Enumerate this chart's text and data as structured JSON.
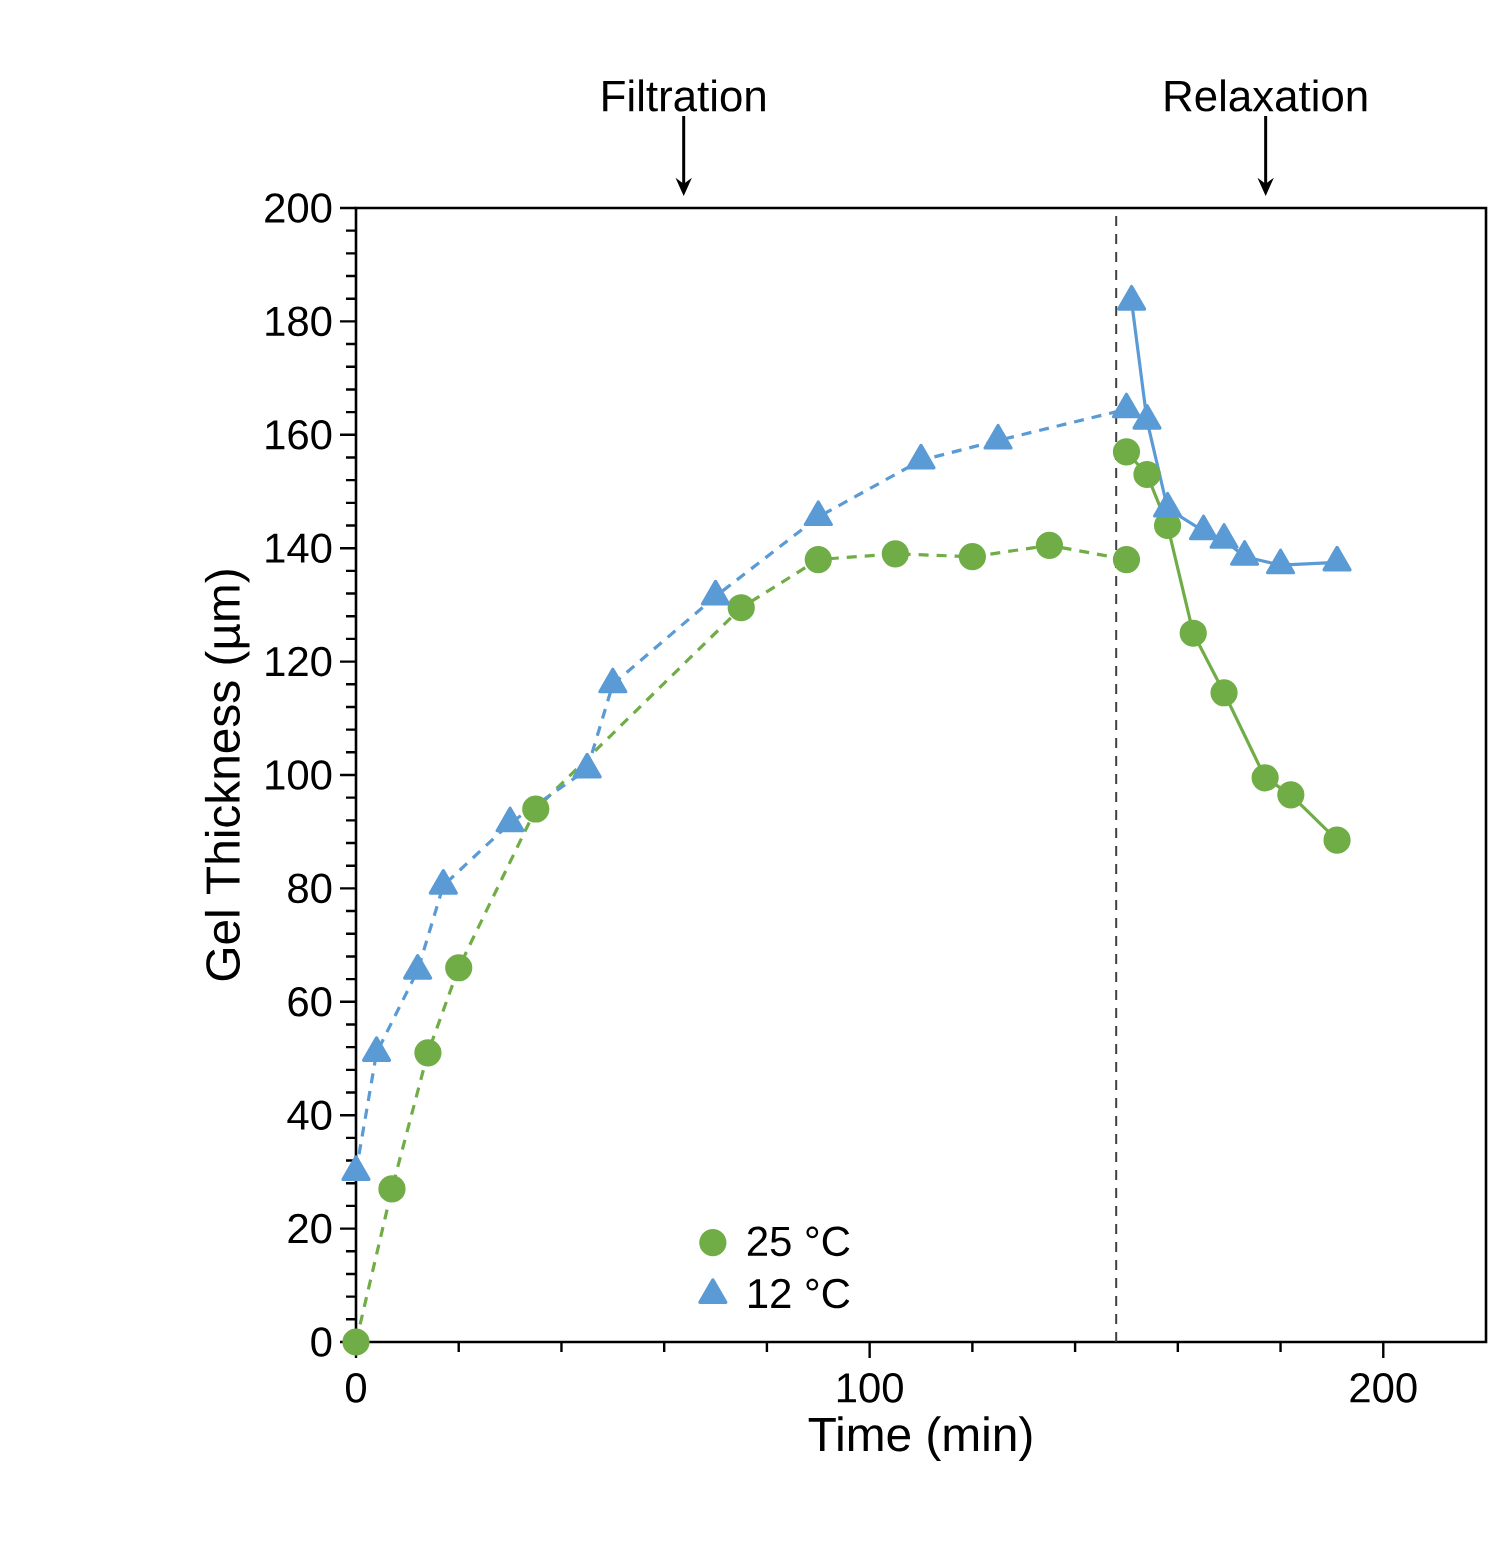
{
  "chart_data": {
    "type": "line",
    "xlabel": "Time (min)",
    "ylabel": "Gel Thickness (µm)",
    "xlim": [
      0,
      220
    ],
    "ylim": [
      0,
      200
    ],
    "xticks": [
      0,
      100,
      200
    ],
    "yticks": [
      0,
      20,
      40,
      60,
      80,
      100,
      120,
      140,
      160,
      180,
      200
    ],
    "legend": "bottom",
    "series": [
      {
        "name": "25 °C",
        "color": "#70ad47",
        "marker": "circle",
        "line_style": "dashed",
        "x": [
          0,
          7,
          14,
          20,
          35,
          75,
          90,
          105,
          120,
          135,
          150
        ],
        "values": [
          0,
          27,
          51,
          66,
          94,
          129.5,
          138,
          139,
          138.5,
          140.5,
          138
        ]
      },
      {
        "color": "#70ad47",
        "marker": "circle",
        "line_style": "solid",
        "x": [
          150,
          154,
          158,
          163,
          169,
          177,
          182,
          191
        ],
        "values": [
          157,
          153,
          144,
          125,
          114.5,
          99.5,
          96.5,
          88.5
        ]
      },
      {
        "name": "12 °C",
        "color": "#5b9bd5",
        "marker": "triangle",
        "line_style": "dashed",
        "x": [
          0,
          4,
          12,
          17,
          30,
          45,
          50,
          70,
          90,
          110,
          125,
          150
        ],
        "values": [
          30,
          51,
          65.5,
          80.5,
          91.5,
          101,
          116,
          131.5,
          145.5,
          155.5,
          159,
          164.5
        ]
      },
      {
        "color": "#5b9bd5",
        "marker": "triangle",
        "line_style": "solid",
        "x": [
          151,
          154,
          158,
          165,
          169,
          173,
          180,
          191
        ],
        "values": [
          183.5,
          162.5,
          147,
          143,
          141.5,
          138.5,
          137,
          137.5
        ]
      }
    ],
    "ref_lines": [
      {
        "axis": "x",
        "value": 148,
        "color": "#404040",
        "line_style": "dashed"
      }
    ],
    "annotations": [
      "Filtration",
      "Relaxation"
    ]
  }
}
